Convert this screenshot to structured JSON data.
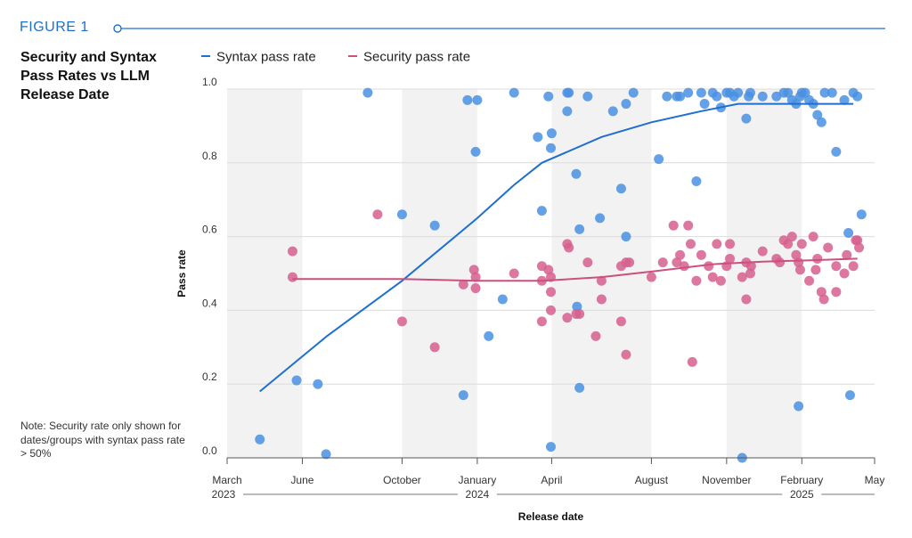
{
  "figure_label": "FIGURE 1",
  "chart_data": {
    "type": "scatter",
    "title": "Security and Syntax Pass Rates vs LLM Release Date",
    "note": "Note: Security rate only shown for dates/groups with syntax pass rate > 50%",
    "xlabel": "Release date",
    "ylabel": "Pass rate",
    "ylim": [
      0,
      1
    ],
    "xlim": [
      "2023-03-01",
      "2025-05-01"
    ],
    "y_ticks": [
      "0.0",
      "0.2",
      "0.4",
      "0.6",
      "0.8",
      "1.0"
    ],
    "x_ticks": [
      {
        "date": "2023-03-01",
        "label": "March"
      },
      {
        "date": "2023-06-01",
        "label": "June"
      },
      {
        "date": "2023-10-01",
        "label": "October"
      },
      {
        "date": "2024-01-01",
        "label": "January"
      },
      {
        "date": "2024-04-01",
        "label": "April"
      },
      {
        "date": "2024-08-01",
        "label": "August"
      },
      {
        "date": "2024-11-01",
        "label": "November"
      },
      {
        "date": "2025-02-01",
        "label": "February"
      },
      {
        "date": "2025-05-01",
        "label": "May"
      }
    ],
    "year_labels": [
      {
        "date": "2023-03-01",
        "label": "2023"
      },
      {
        "date": "2024-01-01",
        "label": "2024"
      },
      {
        "date": "2025-02-01",
        "label": "2025"
      }
    ],
    "shaded_bands": [
      [
        "2023-03-01",
        "2023-06-01"
      ],
      [
        "2023-10-01",
        "2024-01-01"
      ],
      [
        "2024-04-01",
        "2024-08-01"
      ],
      [
        "2024-11-01",
        "2025-02-01"
      ]
    ],
    "grid": "horizontal",
    "legend_position": "top",
    "series": [
      {
        "name": "Syntax pass rate",
        "color": "#1f6fd0",
        "point_color": "#4a90e2",
        "trend": [
          [
            "2023-04-10",
            0.18
          ],
          [
            "2023-07-01",
            0.33
          ],
          [
            "2023-10-01",
            0.48
          ],
          [
            "2024-01-01",
            0.65
          ],
          [
            "2024-02-15",
            0.74
          ],
          [
            "2024-03-20",
            0.8
          ],
          [
            "2024-06-01",
            0.87
          ],
          [
            "2024-08-01",
            0.91
          ],
          [
            "2024-10-01",
            0.94
          ],
          [
            "2024-11-15",
            0.96
          ],
          [
            "2025-01-15",
            0.96
          ],
          [
            "2025-03-15",
            0.96
          ],
          [
            "2025-04-05",
            0.96
          ]
        ],
        "points": [
          [
            "2023-04-10",
            0.05
          ],
          [
            "2023-05-25",
            0.21
          ],
          [
            "2023-06-20",
            0.2
          ],
          [
            "2023-06-30",
            0.01
          ],
          [
            "2023-08-20",
            0.99
          ],
          [
            "2023-10-01",
            0.66
          ],
          [
            "2023-11-10",
            0.63
          ],
          [
            "2023-12-15",
            0.17
          ],
          [
            "2023-12-20",
            0.97
          ],
          [
            "2023-12-30",
            0.83
          ],
          [
            "2024-01-01",
            0.97
          ],
          [
            "2024-01-15",
            0.33
          ],
          [
            "2024-02-01",
            0.43
          ],
          [
            "2024-02-15",
            0.99
          ],
          [
            "2024-03-15",
            0.87
          ],
          [
            "2024-03-20",
            0.67
          ],
          [
            "2024-03-28",
            0.98
          ],
          [
            "2024-03-31",
            0.84
          ],
          [
            "2024-04-01",
            0.88
          ],
          [
            "2024-03-31",
            0.03
          ],
          [
            "2024-04-20",
            0.99
          ],
          [
            "2024-04-20",
            0.94
          ],
          [
            "2024-04-22",
            0.99
          ],
          [
            "2024-05-01",
            0.77
          ],
          [
            "2024-05-02",
            0.41
          ],
          [
            "2024-05-05",
            0.19
          ],
          [
            "2024-05-05",
            0.62
          ],
          [
            "2024-05-15",
            0.98
          ],
          [
            "2024-05-30",
            0.65
          ],
          [
            "2024-06-15",
            0.94
          ],
          [
            "2024-06-25",
            0.73
          ],
          [
            "2024-07-01",
            0.96
          ],
          [
            "2024-07-01",
            0.6
          ],
          [
            "2024-07-10",
            0.99
          ],
          [
            "2024-08-10",
            0.81
          ],
          [
            "2024-08-20",
            0.98
          ],
          [
            "2024-09-01",
            0.98
          ],
          [
            "2024-09-05",
            0.98
          ],
          [
            "2024-09-15",
            0.99
          ],
          [
            "2024-09-25",
            0.75
          ],
          [
            "2024-10-01",
            0.99
          ],
          [
            "2024-10-05",
            0.96
          ],
          [
            "2024-10-15",
            0.99
          ],
          [
            "2024-10-20",
            0.98
          ],
          [
            "2024-10-25",
            0.95
          ],
          [
            "2024-11-01",
            0.99
          ],
          [
            "2024-11-05",
            0.99
          ],
          [
            "2024-11-10",
            0.98
          ],
          [
            "2024-11-15",
            0.99
          ],
          [
            "2024-11-20",
            0.0
          ],
          [
            "2024-11-25",
            0.92
          ],
          [
            "2024-11-28",
            0.98
          ],
          [
            "2024-11-30",
            0.99
          ],
          [
            "2024-12-15",
            0.98
          ],
          [
            "2025-01-01",
            0.98
          ],
          [
            "2025-01-10",
            0.99
          ],
          [
            "2025-01-15",
            0.99
          ],
          [
            "2025-01-20",
            0.97
          ],
          [
            "2025-01-25",
            0.96
          ],
          [
            "2025-01-30",
            0.98
          ],
          [
            "2025-02-01",
            0.99
          ],
          [
            "2025-01-28",
            0.14
          ],
          [
            "2025-02-05",
            0.99
          ],
          [
            "2025-02-10",
            0.97
          ],
          [
            "2025-02-15",
            0.96
          ],
          [
            "2025-02-20",
            0.93
          ],
          [
            "2025-02-25",
            0.91
          ],
          [
            "2025-03-01",
            0.99
          ],
          [
            "2025-03-10",
            0.99
          ],
          [
            "2025-03-15",
            0.83
          ],
          [
            "2025-03-25",
            0.97
          ],
          [
            "2025-03-30",
            0.61
          ],
          [
            "2025-04-01",
            0.17
          ],
          [
            "2025-04-05",
            0.99
          ],
          [
            "2025-04-10",
            0.98
          ],
          [
            "2025-04-15",
            0.66
          ]
        ]
      },
      {
        "name": "Security pass rate",
        "color": "#cc4f7e",
        "point_color": "#d6608e",
        "trend": [
          [
            "2023-05-20",
            0.485
          ],
          [
            "2023-10-01",
            0.485
          ],
          [
            "2024-01-01",
            0.48
          ],
          [
            "2024-03-20",
            0.48
          ],
          [
            "2024-06-01",
            0.49
          ],
          [
            "2024-08-01",
            0.505
          ],
          [
            "2024-10-15",
            0.525
          ],
          [
            "2024-12-15",
            0.532
          ],
          [
            "2025-02-15",
            0.536
          ],
          [
            "2025-04-10",
            0.54
          ]
        ],
        "points": [
          [
            "2023-05-20",
            0.56
          ],
          [
            "2023-05-20",
            0.49
          ],
          [
            "2023-09-01",
            0.66
          ],
          [
            "2023-10-01",
            0.37
          ],
          [
            "2023-11-10",
            0.3
          ],
          [
            "2023-12-15",
            0.47
          ],
          [
            "2023-12-28",
            0.51
          ],
          [
            "2023-12-30",
            0.49
          ],
          [
            "2023-12-30",
            0.46
          ],
          [
            "2024-02-15",
            0.5
          ],
          [
            "2024-03-20",
            0.52
          ],
          [
            "2024-03-20",
            0.48
          ],
          [
            "2024-03-20",
            0.37
          ],
          [
            "2024-03-28",
            0.51
          ],
          [
            "2024-03-31",
            0.45
          ],
          [
            "2024-03-31",
            0.4
          ],
          [
            "2024-03-31",
            0.49
          ],
          [
            "2024-04-20",
            0.58
          ],
          [
            "2024-04-22",
            0.57
          ],
          [
            "2024-04-20",
            0.38
          ],
          [
            "2024-05-01",
            0.39
          ],
          [
            "2024-05-05",
            0.39
          ],
          [
            "2024-05-15",
            0.53
          ],
          [
            "2024-05-25",
            0.33
          ],
          [
            "2024-06-01",
            0.48
          ],
          [
            "2024-06-01",
            0.43
          ],
          [
            "2024-06-25",
            0.37
          ],
          [
            "2024-06-25",
            0.52
          ],
          [
            "2024-07-01",
            0.53
          ],
          [
            "2024-07-01",
            0.28
          ],
          [
            "2024-07-05",
            0.53
          ],
          [
            "2024-08-01",
            0.49
          ],
          [
            "2024-08-15",
            0.53
          ],
          [
            "2024-08-28",
            0.63
          ],
          [
            "2024-09-01",
            0.53
          ],
          [
            "2024-09-05",
            0.55
          ],
          [
            "2024-09-10",
            0.52
          ],
          [
            "2024-09-15",
            0.63
          ],
          [
            "2024-09-18",
            0.58
          ],
          [
            "2024-09-20",
            0.26
          ],
          [
            "2024-09-25",
            0.48
          ],
          [
            "2024-10-01",
            0.55
          ],
          [
            "2024-10-10",
            0.52
          ],
          [
            "2024-10-15",
            0.49
          ],
          [
            "2024-10-20",
            0.58
          ],
          [
            "2024-10-25",
            0.48
          ],
          [
            "2024-11-01",
            0.52
          ],
          [
            "2024-11-05",
            0.54
          ],
          [
            "2024-11-05",
            0.58
          ],
          [
            "2024-11-20",
            0.49
          ],
          [
            "2024-11-25",
            0.43
          ],
          [
            "2024-11-25",
            0.53
          ],
          [
            "2024-11-30",
            0.5
          ],
          [
            "2024-12-01",
            0.52
          ],
          [
            "2024-12-15",
            0.56
          ],
          [
            "2025-01-01",
            0.54
          ],
          [
            "2025-01-05",
            0.53
          ],
          [
            "2025-01-10",
            0.59
          ],
          [
            "2025-01-15",
            0.58
          ],
          [
            "2025-01-20",
            0.6
          ],
          [
            "2025-01-25",
            0.55
          ],
          [
            "2025-01-28",
            0.53
          ],
          [
            "2025-01-30",
            0.51
          ],
          [
            "2025-02-01",
            0.58
          ],
          [
            "2025-02-10",
            0.48
          ],
          [
            "2025-02-15",
            0.6
          ],
          [
            "2025-02-18",
            0.51
          ],
          [
            "2025-02-20",
            0.54
          ],
          [
            "2025-02-25",
            0.45
          ],
          [
            "2025-02-28",
            0.43
          ],
          [
            "2025-03-05",
            0.57
          ],
          [
            "2025-03-15",
            0.52
          ],
          [
            "2025-03-15",
            0.45
          ],
          [
            "2025-03-25",
            0.5
          ],
          [
            "2025-03-28",
            0.55
          ],
          [
            "2025-04-05",
            0.52
          ],
          [
            "2025-04-08",
            0.59
          ],
          [
            "2025-04-10",
            0.59
          ],
          [
            "2025-04-12",
            0.57
          ]
        ]
      }
    ]
  }
}
